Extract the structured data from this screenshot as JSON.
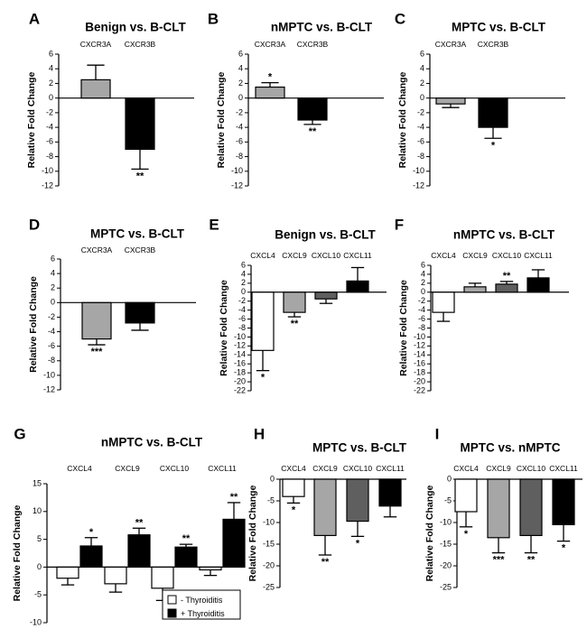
{
  "colors": {
    "light_gray": "#a6a6a6",
    "mid_gray": "#808080",
    "dark_gray": "#5f5f5f",
    "black": "#000000",
    "white": "#ffffff"
  },
  "chart_data": [
    {
      "panel": "A",
      "type": "bar",
      "title": "Benign vs. B-CLT",
      "ylabel": "Relative Fold Change",
      "ylim": [
        -12,
        6
      ],
      "yticks": [
        6,
        4,
        2,
        0,
        -2,
        -4,
        -6,
        -8,
        -10,
        -12
      ],
      "categories": [
        "CXCR3A",
        "CXCR3B"
      ],
      "values": [
        2.5,
        -7.0
      ],
      "errors": [
        2.0,
        2.7
      ],
      "significance": [
        "",
        "**"
      ],
      "bar_colors": [
        "light_gray",
        "black"
      ]
    },
    {
      "panel": "B",
      "type": "bar",
      "title": "nMPTC vs. B-CLT",
      "ylabel": "Relative Fold Change",
      "ylim": [
        -12,
        6
      ],
      "yticks": [
        6,
        4,
        2,
        0,
        -2,
        -4,
        -6,
        -8,
        -10,
        -12
      ],
      "categories": [
        "CXCR3A",
        "CXCR3B"
      ],
      "values": [
        1.5,
        -3.0
      ],
      "errors": [
        0.6,
        0.6
      ],
      "significance": [
        "*",
        "**"
      ],
      "bar_colors": [
        "light_gray",
        "black"
      ]
    },
    {
      "panel": "C",
      "type": "bar",
      "title": "MPTC vs. B-CLT",
      "ylabel": "Relative Fold Change",
      "ylim": [
        -12,
        6
      ],
      "yticks": [
        6,
        4,
        2,
        0,
        -2,
        -4,
        -6,
        -8,
        -10,
        -12
      ],
      "categories": [
        "CXCR3A",
        "CXCR3B"
      ],
      "values": [
        -0.8,
        -4.0
      ],
      "errors": [
        0.5,
        1.5
      ],
      "significance": [
        "",
        "*"
      ],
      "bar_colors": [
        "light_gray",
        "black"
      ]
    },
    {
      "panel": "D",
      "type": "bar",
      "title": "MPTC vs. B-CLT",
      "ylabel": "Relative Fold Change",
      "ylim": [
        -12,
        6
      ],
      "yticks": [
        6,
        4,
        2,
        0,
        -2,
        -4,
        -6,
        -8,
        -10,
        -12
      ],
      "categories": [
        "CXCR3A",
        "CXCR3B"
      ],
      "values": [
        -5.0,
        -2.8
      ],
      "errors": [
        0.8,
        1.0
      ],
      "significance": [
        "***",
        ""
      ],
      "bar_colors": [
        "light_gray",
        "black"
      ]
    },
    {
      "panel": "E",
      "type": "bar",
      "title": "Benign vs. B-CLT",
      "ylabel": "Relative Fold Change",
      "ylim": [
        -22,
        6
      ],
      "yticks": [
        6,
        4,
        2,
        0,
        -2,
        -4,
        -6,
        -8,
        -10,
        -12,
        -14,
        -16,
        -18,
        -20,
        -22
      ],
      "categories": [
        "CXCL4",
        "CXCL9",
        "CXCL10",
        "CXCL11"
      ],
      "values": [
        -13.0,
        -4.5,
        -1.5,
        2.5
      ],
      "errors": [
        4.5,
        1.0,
        1.0,
        3.0
      ],
      "significance": [
        "*",
        "**",
        "",
        ""
      ],
      "bar_colors": [
        "white",
        "light_gray",
        "dark_gray",
        "black"
      ]
    },
    {
      "panel": "F",
      "type": "bar",
      "title": "nMPTC vs. B-CLT",
      "ylabel": "Relative Fold Change",
      "ylim": [
        -22,
        6
      ],
      "yticks": [
        6,
        4,
        2,
        0,
        -2,
        -4,
        -6,
        -8,
        -10,
        -12,
        -14,
        -16,
        -18,
        -20,
        -22
      ],
      "categories": [
        "CXCL4",
        "CXCL9",
        "CXCL10",
        "CXCL11"
      ],
      "values": [
        -4.5,
        1.2,
        1.8,
        3.2
      ],
      "errors": [
        2.0,
        0.8,
        0.6,
        1.8
      ],
      "significance": [
        "",
        "",
        "**",
        ""
      ],
      "bar_colors": [
        "white",
        "light_gray",
        "dark_gray",
        "black"
      ]
    },
    {
      "panel": "G",
      "type": "bar",
      "title": "nMPTC vs. B-CLT",
      "ylabel": "Relative Fold Change",
      "ylim": [
        -10,
        15
      ],
      "yticks": [
        15,
        10,
        5,
        0,
        -5,
        -10
      ],
      "categories": [
        "CXCL4",
        "CXCL9",
        "CXCL10",
        "CXCL11"
      ],
      "series": [
        {
          "name": "- Thyroiditis",
          "values": [
            -2.0,
            -3.0,
            -3.8,
            -0.5
          ],
          "errors": [
            1.2,
            1.5,
            2.2,
            1.0
          ],
          "significance": [
            "",
            "",
            "",
            ""
          ],
          "color": "white"
        },
        {
          "name": "+ Thyroiditis",
          "values": [
            3.8,
            5.8,
            3.6,
            8.6
          ],
          "errors": [
            1.5,
            1.2,
            0.5,
            3.0
          ],
          "significance": [
            "*",
            "**",
            "**",
            "**"
          ],
          "color": "black"
        }
      ],
      "legend_position": "bottom-right"
    },
    {
      "panel": "H",
      "type": "bar",
      "title": "MPTC vs. B-CLT",
      "ylabel": "Relative Fold Change",
      "ylim": [
        -25,
        0
      ],
      "yticks": [
        0,
        -5,
        -10,
        -15,
        -20,
        -25
      ],
      "categories": [
        "CXCL4",
        "CXCL9",
        "CXCL10",
        "CXCL11"
      ],
      "values": [
        -4.0,
        -13.0,
        -9.7,
        -6.2
      ],
      "errors": [
        1.5,
        4.5,
        3.5,
        2.5
      ],
      "significance": [
        "*",
        "**",
        "*",
        ""
      ],
      "bar_colors": [
        "white",
        "light_gray",
        "dark_gray",
        "black"
      ]
    },
    {
      "panel": "I",
      "type": "bar",
      "title": "MPTC vs. nMPTC",
      "ylabel": "Relative Fold Change",
      "ylim": [
        -25,
        0
      ],
      "yticks": [
        0,
        -5,
        -10,
        -15,
        -20,
        -25
      ],
      "categories": [
        "CXCL4",
        "CXCL9",
        "CXCL10",
        "CXCL11"
      ],
      "values": [
        -7.5,
        -13.5,
        -13.0,
        -10.5
      ],
      "errors": [
        3.5,
        3.5,
        4.0,
        3.8
      ],
      "significance": [
        "*",
        "***",
        "**",
        "*"
      ],
      "bar_colors": [
        "white",
        "light_gray",
        "dark_gray",
        "black"
      ]
    }
  ]
}
